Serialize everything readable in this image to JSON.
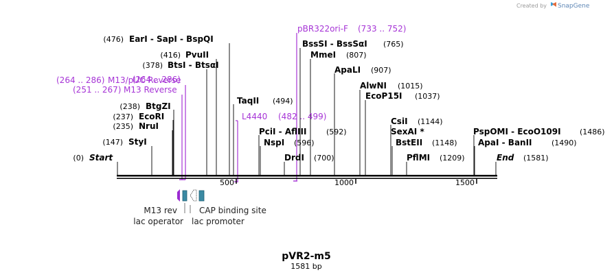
{
  "credit": {
    "prefix": "Created by",
    "brand": "SnapGene"
  },
  "map": {
    "name": "pVR2-m5",
    "size_label": "1581 bp",
    "length": 1581,
    "ticks": [
      "500",
      "1000",
      "1500"
    ]
  },
  "sites": {
    "start": {
      "pos": "(0)",
      "name": "Start"
    },
    "styi": {
      "pos": "(147)",
      "name": "StyI"
    },
    "nrui": {
      "pos": "(235)",
      "name": "NruI"
    },
    "ecori": {
      "pos": "(237)",
      "name": "EcoRI"
    },
    "btgzi": {
      "pos": "(238)",
      "name": "BtgZI"
    },
    "btsi": {
      "pos": "(378)",
      "name": "BtsI",
      "name2": "BtsαI"
    },
    "pvuii": {
      "pos": "(416)",
      "name": "PvuII"
    },
    "eari": {
      "pos": "(476)",
      "name": "EarI",
      "name2": "SapI",
      "name3": "BspQI"
    },
    "taqii": {
      "pos": "(494)",
      "name": "TaqII"
    },
    "pcii": {
      "name": "PciI",
      "name2": "AflIII",
      "pos": "(592)"
    },
    "nspi": {
      "name": "NspI",
      "pos": "(596)"
    },
    "drdi": {
      "name": "DrdI",
      "pos": "(700)"
    },
    "bsssi": {
      "name": "BssSI",
      "name2": "BssSαI",
      "pos": "(765)"
    },
    "mmei": {
      "name": "MmeI",
      "pos": "(807)"
    },
    "apali": {
      "name": "ApaLI",
      "pos": "(907)"
    },
    "alwni": {
      "name": "AlwNI",
      "pos": "(1015)"
    },
    "ecop15i": {
      "name": "EcoP15I",
      "pos": "(1037)"
    },
    "csii": {
      "name": "CsiI",
      "pos": "(1144)"
    },
    "sexai": {
      "name": "SexAI *"
    },
    "bsteii": {
      "name": "BstEII",
      "pos": "(1148)"
    },
    "pflmi": {
      "name": "PflMI",
      "pos": "(1209)"
    },
    "pspomi": {
      "name": "PspOMI",
      "name2": "EcoO109I",
      "pos": "(1486)"
    },
    "apai": {
      "name": "ApaI",
      "name2": "BanII",
      "pos": "(1490)"
    },
    "end": {
      "name": "End",
      "pos": "(1581)"
    }
  },
  "primers": {
    "m13puc": {
      "range": "(264 .. 286)",
      "name": "M13/pUC Reverse"
    },
    "m13rev": {
      "range": "(251 .. 267)",
      "name": "M13 Reverse"
    },
    "l4440": {
      "name": "L4440",
      "range": "(482 .. 499)"
    },
    "pbr322": {
      "name": "pBR322ori-F",
      "range": "(733 .. 752)"
    }
  },
  "features": {
    "m13rev_label": "M13 rev",
    "lacop_label": "lac operator",
    "cap_label": "CAP binding site",
    "lacprom_label": "lac promoter"
  },
  "colors": {
    "primer": "#a634d6",
    "promoter": "#9b2bd1",
    "operator": "#3b8aa3",
    "backbone": "#000000"
  }
}
